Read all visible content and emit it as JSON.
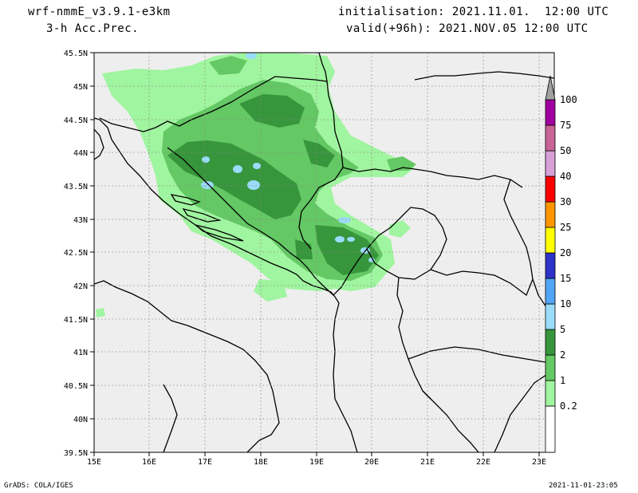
{
  "header": {
    "model": "wrf-nmmE_v3.9.1-e3km",
    "field": "3-h Acc.Prec.",
    "init": "initialisation: 2021.11.01.  12:00 UTC",
    "valid": "valid(+96h): 2021.NOV.05 12:00 UTC"
  },
  "footer": {
    "left": "GrADS: COLA/IGES",
    "right": "2021-11-01-23:05"
  },
  "map": {
    "lon_labels": [
      "15E",
      "16E",
      "17E",
      "18E",
      "19E",
      "20E",
      "21E",
      "22E",
      "23E"
    ],
    "lat_labels": [
      "45.5N",
      "45N",
      "44.5N",
      "44N",
      "43.5N",
      "43N",
      "42.5N",
      "42N",
      "41.5N",
      "41N",
      "40.5N",
      "40N",
      "39.5N"
    ],
    "lon_range": [
      15,
      23.25
    ],
    "lat_range": [
      39.5,
      45.5
    ]
  },
  "colorbar": {
    "levels": [
      "0.2",
      "1",
      "2",
      "5",
      "10",
      "15",
      "20",
      "25",
      "30",
      "40",
      "50",
      "75",
      "100"
    ],
    "colors": [
      "#a0f5a0",
      "#64c864",
      "#37963c",
      "#9bdcfa",
      "#50a5f5",
      "#2d32c8",
      "#ffff00",
      "#ff9600",
      "#ff0000",
      "#d7a0d7",
      "#c86496",
      "#a000a0",
      "#a0a0a0"
    ]
  }
}
